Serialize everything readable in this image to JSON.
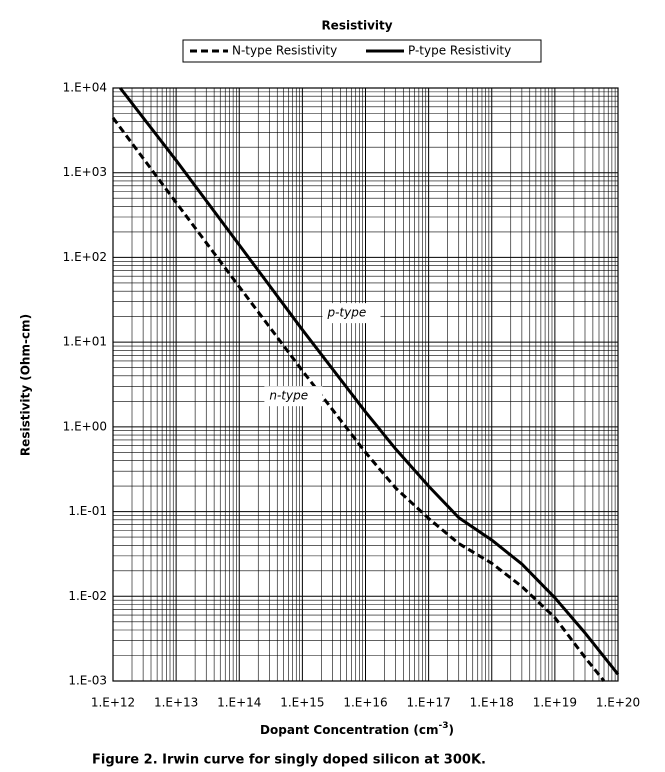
{
  "chart_data": {
    "type": "line",
    "title": "Resistivity",
    "xlabel": "Dopant Concentration (cm",
    "xlabel_sup": "-3",
    "xlabel_end": ")",
    "ylabel": "Resistivity (Ohm-cm)",
    "caption": "Figure 2. Irwin curve for singly doped silicon at 300K.",
    "xscale": "log",
    "yscale": "log",
    "grid": true,
    "minor_grid": true,
    "legend": "top",
    "xlim": [
      1000000000000.0,
      1e+20
    ],
    "ylim": [
      0.001,
      10000
    ],
    "xticks": [
      {
        "value": 1000000000000.0,
        "label": "1.E+12"
      },
      {
        "value": 10000000000000.0,
        "label": "1.E+13"
      },
      {
        "value": 100000000000000.0,
        "label": "1.E+14"
      },
      {
        "value": 1000000000000000.0,
        "label": "1.E+15"
      },
      {
        "value": 1e+16,
        "label": "1.E+16"
      },
      {
        "value": 1e+17,
        "label": "1.E+17"
      },
      {
        "value": 1e+18,
        "label": "1.E+18"
      },
      {
        "value": 1e+19,
        "label": "1.E+19"
      },
      {
        "value": 1e+20,
        "label": "1.E+20"
      }
    ],
    "yticks": [
      {
        "value": 0.001,
        "label": "1.E-03"
      },
      {
        "value": 0.01,
        "label": "1.E-02"
      },
      {
        "value": 0.1,
        "label": "1.E-01"
      },
      {
        "value": 1,
        "label": "1.E+00"
      },
      {
        "value": 10,
        "label": "1.E+01"
      },
      {
        "value": 100,
        "label": "1.E+02"
      },
      {
        "value": 1000,
        "label": "1.E+03"
      },
      {
        "value": 10000,
        "label": "1.E+04"
      }
    ],
    "series": [
      {
        "name": "N-type Resistivity",
        "color": "#000000",
        "dash": true,
        "x": [
          1000000000000.0,
          10000000000000.0,
          100000000000000.0,
          1000000000000000.0,
          1e+16,
          3e+16,
          1e+17,
          3e+17,
          1e+18,
          3e+18,
          1e+19,
          3e+19,
          6e+19
        ],
        "values": [
          4450,
          445,
          45,
          4.6,
          0.5,
          0.19,
          0.083,
          0.042,
          0.0245,
          0.013,
          0.0056,
          0.0019,
          0.001
        ]
      },
      {
        "name": "P-type Resistivity",
        "color": "#000000",
        "dash": false,
        "x": [
          1300000000000.0,
          10000000000000.0,
          100000000000000.0,
          1000000000000000.0,
          1e+16,
          3e+16,
          1e+17,
          3e+17,
          1e+18,
          3e+18,
          1e+19,
          3e+19,
          1e+20
        ],
        "values": [
          10000,
          1400,
          140,
          14,
          1.5,
          0.55,
          0.2,
          0.085,
          0.046,
          0.024,
          0.0096,
          0.0037,
          0.0012
        ]
      }
    ],
    "annotations": [
      {
        "text": "p-type",
        "x": 2500000000000000.0,
        "y": 22
      },
      {
        "text": "n-type",
        "x": 300000000000000.0,
        "y": 2.3
      }
    ]
  }
}
